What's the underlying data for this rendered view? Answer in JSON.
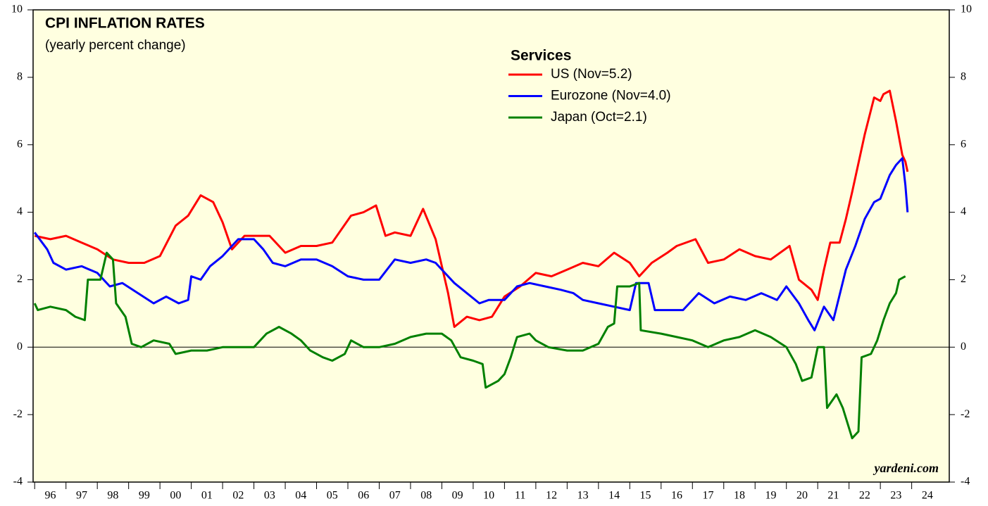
{
  "chart_data": {
    "type": "line",
    "title": "CPI INFLATION RATES",
    "subtitle": "(yearly percent change)",
    "legend_title": "Services",
    "annotation": "yardeni.com",
    "xlim": [
      1995.95,
      2025.2
    ],
    "xticks": [
      {
        "value": 1996,
        "label": "96"
      },
      {
        "value": 1997,
        "label": "97"
      },
      {
        "value": 1998,
        "label": "98"
      },
      {
        "value": 1999,
        "label": "99"
      },
      {
        "value": 2000,
        "label": "00"
      },
      {
        "value": 2001,
        "label": "01"
      },
      {
        "value": 2002,
        "label": "02"
      },
      {
        "value": 2003,
        "label": "03"
      },
      {
        "value": 2004,
        "label": "04"
      },
      {
        "value": 2005,
        "label": "05"
      },
      {
        "value": 2006,
        "label": "06"
      },
      {
        "value": 2007,
        "label": "07"
      },
      {
        "value": 2008,
        "label": "08"
      },
      {
        "value": 2009,
        "label": "09"
      },
      {
        "value": 2010,
        "label": "10"
      },
      {
        "value": 2011,
        "label": "11"
      },
      {
        "value": 2012,
        "label": "12"
      },
      {
        "value": 2013,
        "label": "13"
      },
      {
        "value": 2014,
        "label": "14"
      },
      {
        "value": 2015,
        "label": "15"
      },
      {
        "value": 2016,
        "label": "16"
      },
      {
        "value": 2017,
        "label": "17"
      },
      {
        "value": 2018,
        "label": "18"
      },
      {
        "value": 2019,
        "label": "19"
      },
      {
        "value": 2020,
        "label": "20"
      },
      {
        "value": 2021,
        "label": "21"
      },
      {
        "value": 2022,
        "label": "22"
      },
      {
        "value": 2023,
        "label": "23"
      },
      {
        "value": 2024,
        "label": "24"
      }
    ],
    "ylim": [
      -4,
      10
    ],
    "yticks": [
      -4,
      -2,
      0,
      2,
      4,
      6,
      8,
      10
    ],
    "background": "#ffffe0",
    "series": [
      {
        "name": "US (Nov=5.2)",
        "color": "#ff0000",
        "x": [
          1996.0,
          1996.5,
          1997.0,
          1997.5,
          1998.0,
          1998.5,
          1999.0,
          1999.5,
          2000.0,
          2000.5,
          2000.9,
          2001.3,
          2001.7,
          2002.0,
          2002.3,
          2002.7,
          2003.0,
          2003.5,
          2004.0,
          2004.5,
          2005.0,
          2005.5,
          2006.1,
          2006.5,
          2006.9,
          2007.2,
          2007.5,
          2008.0,
          2008.4,
          2008.8,
          2009.2,
          2009.4,
          2009.8,
          2010.2,
          2010.6,
          2011.0,
          2011.5,
          2012.0,
          2012.5,
          2013.0,
          2013.5,
          2014.0,
          2014.5,
          2015.0,
          2015.3,
          2015.7,
          2016.2,
          2016.5,
          2017.1,
          2017.5,
          2018.0,
          2018.5,
          2019.0,
          2019.5,
          2020.1,
          2020.4,
          2020.8,
          2021.0,
          2021.2,
          2021.4,
          2021.7,
          2021.9,
          2022.1,
          2022.5,
          2022.8,
          2023.0,
          2023.1,
          2023.3,
          2023.5,
          2023.7,
          2023.8,
          2023.87
        ],
        "values": [
          3.3,
          3.2,
          3.3,
          3.1,
          2.9,
          2.6,
          2.5,
          2.5,
          2.7,
          3.6,
          3.9,
          4.5,
          4.3,
          3.7,
          2.9,
          3.3,
          3.3,
          3.3,
          2.8,
          3.0,
          3.0,
          3.1,
          3.9,
          4.0,
          4.2,
          3.3,
          3.4,
          3.3,
          4.1,
          3.2,
          1.6,
          0.6,
          0.9,
          0.8,
          0.9,
          1.5,
          1.8,
          2.2,
          2.1,
          2.3,
          2.5,
          2.4,
          2.8,
          2.5,
          2.1,
          2.5,
          2.8,
          3.0,
          3.2,
          2.5,
          2.6,
          2.9,
          2.7,
          2.6,
          3.0,
          2.0,
          1.7,
          1.4,
          2.3,
          3.1,
          3.1,
          3.8,
          4.6,
          6.3,
          7.4,
          7.3,
          7.5,
          7.6,
          6.7,
          5.7,
          5.5,
          5.2
        ]
      },
      {
        "name": "Eurozone (Nov=4.0)",
        "color": "#0000ff",
        "x": [
          1996.0,
          1996.4,
          1996.6,
          1997.0,
          1997.5,
          1998.0,
          1998.4,
          1998.8,
          1999.3,
          1999.8,
          2000.2,
          2000.6,
          2000.9,
          2001.0,
          2001.3,
          2001.6,
          2002.0,
          2002.5,
          2003.0,
          2003.3,
          2003.6,
          2004.0,
          2004.5,
          2005.0,
          2005.5,
          2006.0,
          2006.5,
          2007.0,
          2007.5,
          2008.0,
          2008.5,
          2008.8,
          2009.0,
          2009.4,
          2009.8,
          2010.2,
          2010.5,
          2011.0,
          2011.4,
          2011.8,
          2012.3,
          2012.8,
          2013.2,
          2013.5,
          2014.0,
          2014.5,
          2015.0,
          2015.2,
          2015.6,
          2015.8,
          2016.2,
          2016.7,
          2017.2,
          2017.7,
          2018.2,
          2018.7,
          2019.2,
          2019.7,
          2020.0,
          2020.4,
          2020.7,
          2020.9,
          2021.2,
          2021.5,
          2021.9,
          2022.2,
          2022.5,
          2022.8,
          2023.0,
          2023.3,
          2023.5,
          2023.7,
          2023.8,
          2023.87
        ],
        "values": [
          3.4,
          2.9,
          2.5,
          2.3,
          2.4,
          2.2,
          1.8,
          1.9,
          1.6,
          1.3,
          1.5,
          1.3,
          1.4,
          2.1,
          2.0,
          2.4,
          2.7,
          3.2,
          3.2,
          2.9,
          2.5,
          2.4,
          2.6,
          2.6,
          2.4,
          2.1,
          2.0,
          2.0,
          2.6,
          2.5,
          2.6,
          2.5,
          2.3,
          1.9,
          1.6,
          1.3,
          1.4,
          1.4,
          1.8,
          1.9,
          1.8,
          1.7,
          1.6,
          1.4,
          1.3,
          1.2,
          1.1,
          1.9,
          1.9,
          1.1,
          1.1,
          1.1,
          1.6,
          1.3,
          1.5,
          1.4,
          1.6,
          1.4,
          1.8,
          1.3,
          0.8,
          0.5,
          1.2,
          0.8,
          2.3,
          3.0,
          3.8,
          4.3,
          4.4,
          5.1,
          5.4,
          5.6,
          4.8,
          4.0
        ]
      },
      {
        "name": "Japan (Oct=2.1)",
        "color": "#008000",
        "x": [
          1996.0,
          1996.1,
          1996.5,
          1997.0,
          1997.3,
          1997.6,
          1997.7,
          1998.1,
          1998.3,
          1998.5,
          1998.6,
          1998.9,
          1999.1,
          1999.4,
          1999.8,
          2000.3,
          2000.5,
          2001.0,
          2001.5,
          2002.0,
          2002.5,
          2003.0,
          2003.4,
          2003.8,
          2004.2,
          2004.5,
          2004.8,
          2005.2,
          2005.5,
          2005.9,
          2006.1,
          2006.5,
          2007.0,
          2007.5,
          2008.0,
          2008.5,
          2009.0,
          2009.3,
          2009.6,
          2010.0,
          2010.3,
          2010.4,
          2010.8,
          2011.0,
          2011.2,
          2011.4,
          2011.8,
          2012.0,
          2012.4,
          2013.0,
          2013.5,
          2014.0,
          2014.3,
          2014.5,
          2014.6,
          2015.0,
          2015.3,
          2015.35,
          2016.0,
          2016.5,
          2017.0,
          2017.5,
          2018.0,
          2018.5,
          2019.0,
          2019.5,
          2020.0,
          2020.3,
          2020.5,
          2020.8,
          2021.0,
          2021.2,
          2021.3,
          2021.6,
          2021.8,
          2022.1,
          2022.3,
          2022.4,
          2022.7,
          2022.9,
          2023.1,
          2023.3,
          2023.5,
          2023.6,
          2023.8
        ],
        "values": [
          1.3,
          1.1,
          1.2,
          1.1,
          0.9,
          0.8,
          2.0,
          2.0,
          2.8,
          2.6,
          1.3,
          0.9,
          0.1,
          0.0,
          0.2,
          0.1,
          -0.2,
          -0.1,
          -0.1,
          0.0,
          0.0,
          0.0,
          0.4,
          0.6,
          0.4,
          0.2,
          -0.1,
          -0.3,
          -0.4,
          -0.2,
          0.2,
          0.0,
          0.0,
          0.1,
          0.3,
          0.4,
          0.4,
          0.2,
          -0.3,
          -0.4,
          -0.5,
          -1.2,
          -1.0,
          -0.8,
          -0.3,
          0.3,
          0.4,
          0.2,
          0.0,
          -0.1,
          -0.1,
          0.1,
          0.6,
          0.7,
          1.8,
          1.8,
          1.9,
          0.5,
          0.4,
          0.3,
          0.2,
          0.0,
          0.2,
          0.3,
          0.5,
          0.3,
          0.0,
          -0.5,
          -1.0,
          -0.9,
          0.0,
          0.0,
          -1.8,
          -1.4,
          -1.8,
          -2.7,
          -2.5,
          -0.3,
          -0.2,
          0.2,
          0.8,
          1.3,
          1.6,
          2.0,
          2.1
        ]
      }
    ]
  }
}
